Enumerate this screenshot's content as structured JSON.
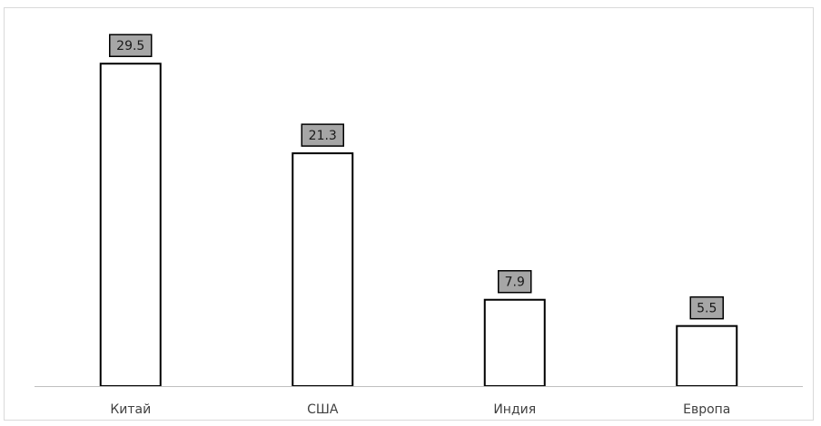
{
  "chart_data": {
    "type": "bar",
    "categories": [
      "Китай",
      "США",
      "Индия",
      "Европа"
    ],
    "values": [
      29.5,
      21.3,
      7.9,
      5.5
    ],
    "data_labels": [
      "29.5",
      "21.3",
      "7.9",
      "5.5"
    ],
    "title": "",
    "xlabel": "",
    "ylabel": "",
    "ylim": [
      0,
      33.5
    ],
    "grid": false,
    "legend": "none",
    "colors": {
      "bar_fill": "#ffffff",
      "bar_stroke": "#000000",
      "label_fill": "#a6a6a6"
    }
  }
}
